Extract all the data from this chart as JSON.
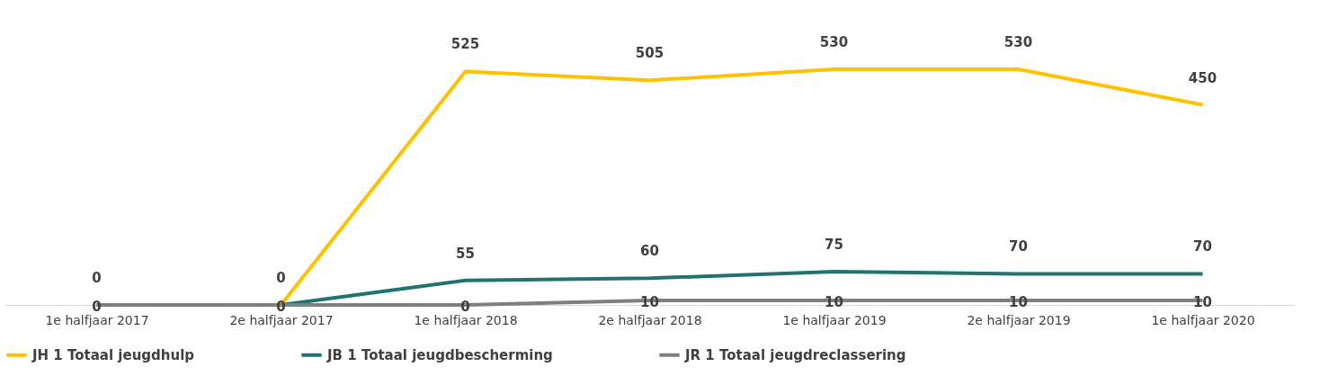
{
  "chart_data": {
    "type": "line",
    "categories": [
      "1e halfjaar 2017",
      "2e halfjaar 2017",
      "1e halfjaar 2018",
      "2e halfjaar 2018",
      "1e halfjaar 2019",
      "2e halfjaar 2019",
      "1e halfjaar 2020"
    ],
    "series": [
      {
        "name": "JH 1 Totaal jeugdhulp",
        "color": "#ffc000",
        "values": [
          0,
          0,
          525,
          505,
          530,
          530,
          450
        ],
        "value_labels": [
          "0",
          "0",
          "525",
          "505",
          "530",
          "530",
          "450"
        ]
      },
      {
        "name": "JB 1 Totaal jeugdbescherming",
        "color": "#21736f",
        "values": [
          0,
          0,
          55,
          60,
          75,
          70,
          70
        ],
        "value_labels": [
          null,
          null,
          "55",
          "60",
          "75",
          "70",
          "70"
        ]
      },
      {
        "name": "JR 1 Totaal jeugdreclassering",
        "color": "#7f7f7f",
        "values": [
          0,
          0,
          0,
          10,
          10,
          10,
          10
        ],
        "value_labels": [
          "0",
          "0",
          "0",
          "10",
          "10",
          "10",
          "10"
        ]
      }
    ],
    "legend": "bottom",
    "grid": false,
    "marker": "none",
    "line_style": "solid"
  }
}
